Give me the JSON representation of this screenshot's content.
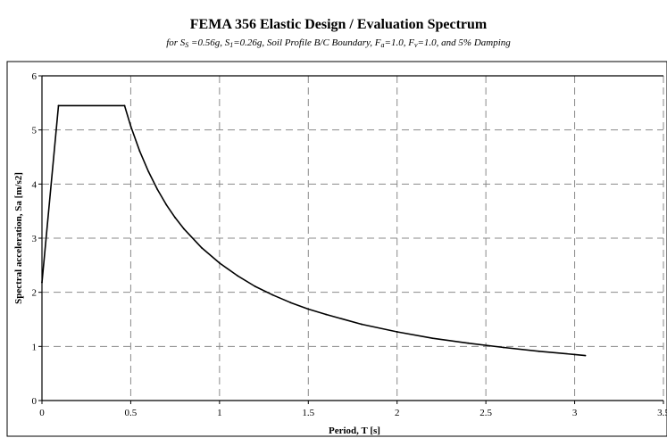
{
  "chart_data": {
    "type": "line",
    "title": "FEMA 356 Elastic Design / Evaluation Spectrum",
    "subtitle": {
      "p1": "for S",
      "s1": "S",
      "p2": " =0.56g, S",
      "s2": "1",
      "p3": "=0.26g, Soil Profile B/C Boundary, F",
      "s3": "a",
      "p4": "=1.0, F",
      "s4": "v",
      "p5": "=1.0, and 5% Damping"
    },
    "xlabel": "Period, T [s]",
    "ylabel": "Spectral acceleration, Sa [m/s2]",
    "xlim": [
      0,
      3.5
    ],
    "ylim": [
      0,
      6
    ],
    "xticks": [
      0,
      0.5,
      1,
      1.5,
      2,
      2.5,
      3,
      3.5
    ],
    "xtick_labels": [
      "0",
      "0.5",
      "1",
      "1.5",
      "2",
      "2.5",
      "3",
      "3.5"
    ],
    "yticks": [
      0,
      1,
      2,
      3,
      4,
      5,
      6
    ],
    "ytick_labels": [
      "0",
      "1",
      "2",
      "3",
      "4",
      "5",
      "6"
    ],
    "grid": true,
    "legend": "none",
    "series": [
      {
        "x": [
          0,
          0.093,
          0.465,
          0.5,
          0.55,
          0.6,
          0.65,
          0.7,
          0.75,
          0.8,
          0.9,
          1.0,
          1.1,
          1.2,
          1.3,
          1.4,
          1.5,
          1.6,
          1.8,
          2.0,
          2.2,
          2.4,
          2.6,
          2.8,
          3.0,
          3.06
        ],
        "y": [
          2.18,
          5.45,
          5.45,
          5.07,
          4.61,
          4.23,
          3.9,
          3.62,
          3.38,
          3.17,
          2.82,
          2.54,
          2.31,
          2.11,
          1.95,
          1.81,
          1.69,
          1.59,
          1.41,
          1.27,
          1.15,
          1.06,
          0.98,
          0.91,
          0.85,
          0.83
        ]
      }
    ]
  }
}
